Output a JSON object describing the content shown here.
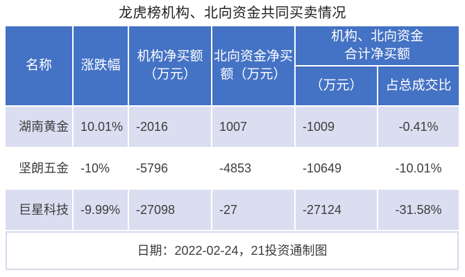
{
  "title": "龙虎榜机构、北向资金共同买卖情况",
  "colors": {
    "header_bg": "#4472C4",
    "header_text": "#FFFFFF",
    "row_alt_bg": "#DBDEF1",
    "row_bg": "#FFFFFF",
    "body_text": "#3D3D3D",
    "title_text": "#202020",
    "footer_border": "#D6DAEE",
    "grid_gap": "#FFFFFF"
  },
  "chart_data": {
    "type": "table",
    "title": "龙虎榜机构、北向资金共同买卖情况",
    "columns": [
      "名称",
      "涨跌幅",
      "机构净买额（万元）",
      "北向资金净买额（万元）",
      "机构、北向资金合计净买额（万元）",
      "机构、北向资金合计净买额占总成交比"
    ],
    "rows": [
      [
        "湖南黄金",
        "10.01%",
        -2016,
        1007,
        -1009,
        "-0.41%"
      ],
      [
        "坚朗五金",
        "-10%",
        -5796,
        -4853,
        -10649,
        "-10.01%"
      ],
      [
        "巨星科技",
        "-9.99%",
        -27098,
        -27,
        -27124,
        "-31.58%"
      ]
    ],
    "footnote": "日期：2022-02-24，21投资通制图"
  },
  "table": {
    "headers": {
      "name": "名称",
      "change": "涨跌幅",
      "inst_net_buy": "机构净买额\n（万元）",
      "north_net_buy": "北向资金净买\n额（万元）",
      "combined_group": "机构、北向资金\n合计净买额",
      "combined_amount": "（万元）",
      "combined_ratio": "占总成交比"
    },
    "rows": [
      {
        "name": "湖南黄金",
        "change": "10.01%",
        "inst": "-2016",
        "north": "1007",
        "combined": "-1009",
        "ratio": "-0.41%"
      },
      {
        "name": "坚朗五金",
        "change": "-10%",
        "inst": "-5796",
        "north": "-4853",
        "combined": "-10649",
        "ratio": "-10.01%"
      },
      {
        "name": "巨星科技",
        "change": "-9.99%",
        "inst": "-27098",
        "north": "-27",
        "combined": "-27124",
        "ratio": "-31.58%"
      }
    ],
    "footer": "日期：2022-02-24，21投资通制图"
  }
}
